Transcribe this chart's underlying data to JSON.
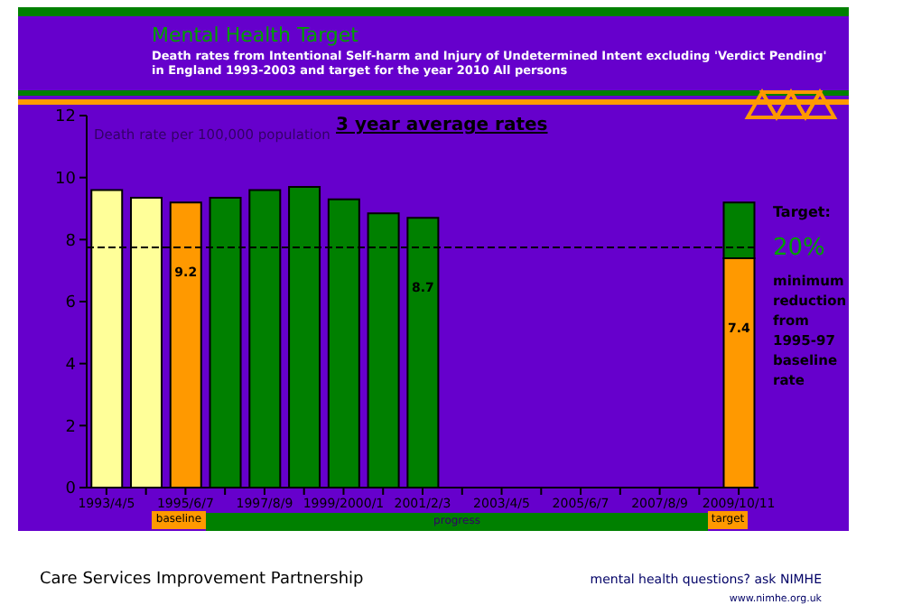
{
  "chart_data": {
    "type": "bar",
    "title": "Mental Health Target",
    "subtitle": "Death rates from Intentional Self-harm and Injury of Undetermined Intent excluding 'Verdict Pending' in England 1993-2003 and target for the year 2010 All persons",
    "ylabel": "Death rate per 100,000 population",
    "categories": [
      "1993/4/5",
      null,
      "1995/6/7",
      null,
      "1997/8/9",
      null,
      "1999/2000/1",
      null,
      "2001/2/3",
      null,
      "2003/4/5",
      null,
      "2005/6/7",
      null,
      "2007/8/9",
      null,
      "2009/10/11"
    ],
    "stacked": true,
    "series": [
      {
        "values": [
          9.6,
          9.35,
          9.2,
          9.35,
          9.6,
          9.7,
          9.3,
          8.85,
          8.7,
          null,
          null,
          null,
          null,
          null,
          null,
          null,
          7.4
        ],
        "colors": [
          "#ffff99",
          "#ffff99",
          "#ff9900",
          "#008000",
          "#008000",
          "#008000",
          "#008000",
          "#008000",
          "#008000",
          null,
          null,
          null,
          null,
          null,
          null,
          null,
          "#ff9900"
        ],
        "value_labels": [
          null,
          null,
          "9.2",
          null,
          null,
          null,
          null,
          null,
          "8.7",
          null,
          null,
          null,
          null,
          null,
          null,
          null,
          "7.4"
        ]
      },
      {
        "values": [
          null,
          null,
          null,
          null,
          null,
          null,
          null,
          null,
          null,
          null,
          null,
          null,
          null,
          null,
          null,
          null,
          1.8
        ],
        "color": "#008000"
      }
    ],
    "ylim": [
      0,
      12
    ],
    "yticks": [
      0,
      2,
      4,
      6,
      8,
      10,
      12
    ],
    "ref_lines": [
      {
        "axis": "y",
        "value": 7.75,
        "line_style": "dashed",
        "color": "#000000"
      }
    ],
    "annotations": [
      "3 year average rates",
      "Target:",
      "20%",
      "minimum reduction from 1995-97 baseline rate",
      "baseline",
      "progress",
      "target",
      "Care Services Improvement Partnership",
      "mental health questions? ask NIMHE",
      "www.nimhe.org.uk"
    ]
  }
}
